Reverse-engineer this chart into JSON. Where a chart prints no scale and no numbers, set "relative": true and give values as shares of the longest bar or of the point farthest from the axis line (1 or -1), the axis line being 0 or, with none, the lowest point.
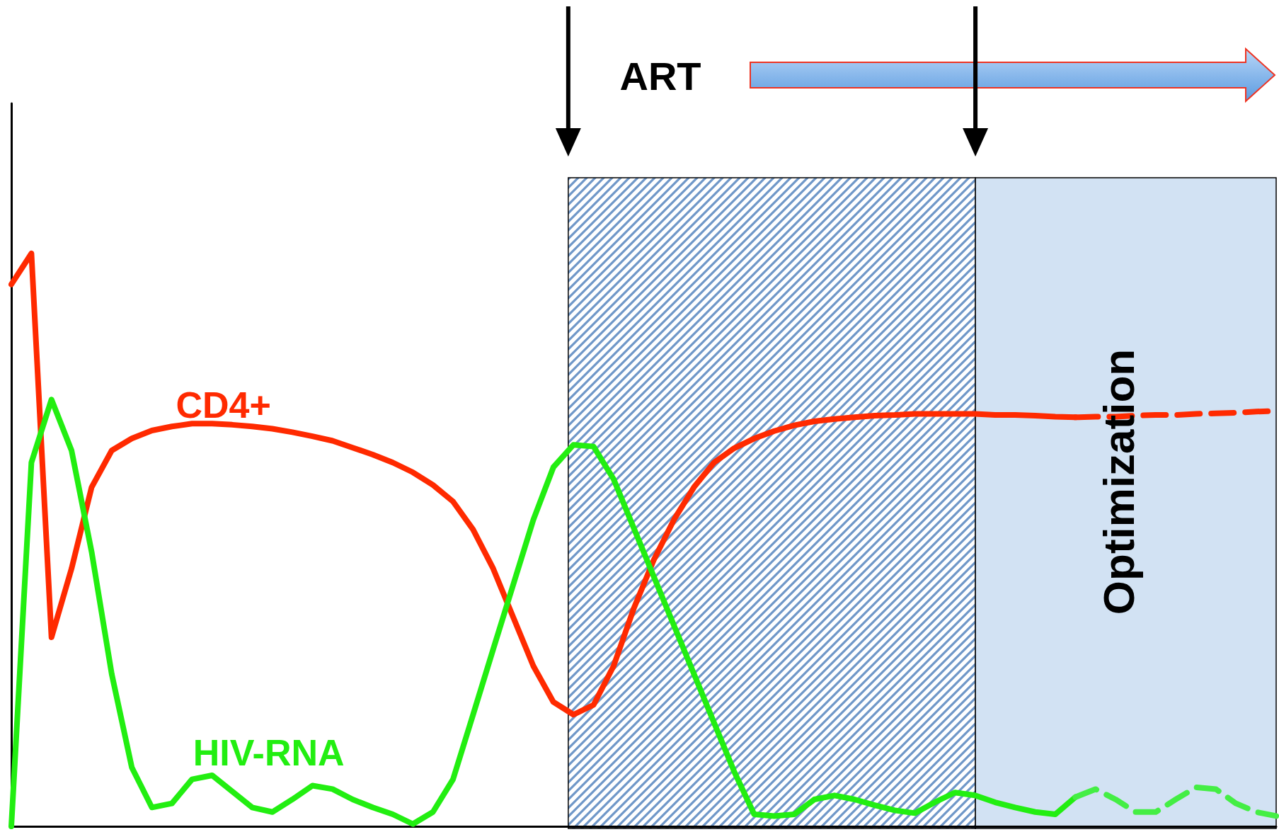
{
  "chart_data": {
    "type": "line",
    "relative": true,
    "grid": false,
    "legend": false,
    "marker": "none",
    "annotations": [
      "ART",
      "Optimization"
    ],
    "categories": [
      null,
      null,
      null,
      null,
      null,
      null,
      null,
      null,
      null,
      null,
      null,
      null,
      null,
      null,
      null,
      null,
      null,
      null,
      null,
      null,
      null,
      null,
      null,
      null,
      null,
      null,
      null,
      null,
      null,
      null,
      null,
      null,
      null,
      null,
      null,
      null,
      null,
      null,
      null,
      null,
      null,
      null,
      null,
      null,
      null,
      null,
      null,
      null,
      null,
      null,
      null,
      null,
      null,
      null,
      null,
      null,
      null,
      null,
      null,
      null,
      null,
      null,
      null,
      null
    ],
    "series": [
      {
        "name": "CD4+",
        "color": "#ff2a00",
        "line_style": "solid",
        "values": [
          0.946,
          1,
          0.33,
          0.45,
          0.592,
          0.656,
          0.677,
          0.691,
          0.698,
          0.703,
          0.703,
          0.701,
          0.698,
          0.694,
          0.688,
          0.681,
          0.673,
          0.661,
          0.649,
          0.635,
          0.618,
          0.596,
          0.567,
          0.518,
          0.45,
          0.365,
          0.28,
          0.217,
          0.195,
          0.212,
          0.28,
          0.38,
          0.465,
          0.535,
          0.592,
          0.635,
          0.66,
          0.677,
          0.69,
          0.7,
          0.707,
          0.711,
          0.714,
          0.717,
          0.718,
          0.72,
          0.72,
          0.72,
          0.72,
          0.718,
          0.718,
          0.717,
          0.715,
          0.714,
          null,
          null,
          null,
          null,
          null,
          null,
          null,
          null,
          null,
          null
        ]
      },
      {
        "name": "HIV-RNA",
        "color": "#22ee11",
        "line_style": "solid",
        "values": [
          0,
          0.635,
          0.745,
          0.656,
          0.479,
          0.266,
          0.103,
          0.033,
          0.04,
          0.082,
          0.089,
          0.061,
          0.033,
          0.025,
          0.047,
          0.071,
          0.065,
          0.047,
          0.033,
          0.021,
          0.004,
          0.025,
          0.082,
          0.195,
          0.309,
          0.422,
          0.535,
          0.627,
          0.666,
          0.663,
          0.606,
          0.521,
          0.436,
          0.351,
          0.266,
          0.181,
          0.096,
          0.021,
          0.018,
          0.021,
          0.047,
          0.054,
          0.047,
          0.037,
          0.028,
          0.023,
          0.042,
          0.059,
          0.054,
          0.042,
          0.033,
          0.025,
          0.021,
          0.051,
          null,
          null,
          null,
          null,
          null,
          null,
          null,
          null,
          null,
          null
        ]
      },
      {
        "color": "#ff2a00",
        "line_style": "dashed",
        "values": [
          null,
          null,
          null,
          null,
          null,
          null,
          null,
          null,
          null,
          null,
          null,
          null,
          null,
          null,
          null,
          null,
          null,
          null,
          null,
          null,
          null,
          null,
          null,
          null,
          null,
          null,
          null,
          null,
          null,
          null,
          null,
          null,
          null,
          null,
          null,
          null,
          null,
          null,
          null,
          null,
          null,
          null,
          null,
          null,
          null,
          null,
          null,
          null,
          null,
          null,
          null,
          null,
          null,
          0.714,
          0.715,
          0.715,
          0.717,
          0.718,
          0.718,
          0.72,
          0.721,
          0.722,
          0.724,
          0.725
        ]
      },
      {
        "color": "#44ee44",
        "line_style": "dashed",
        "values": [
          null,
          null,
          null,
          null,
          null,
          null,
          null,
          null,
          null,
          null,
          null,
          null,
          null,
          null,
          null,
          null,
          null,
          null,
          null,
          null,
          null,
          null,
          null,
          null,
          null,
          null,
          null,
          null,
          null,
          null,
          null,
          null,
          null,
          null,
          null,
          null,
          null,
          null,
          null,
          null,
          null,
          null,
          null,
          null,
          null,
          null,
          null,
          null,
          null,
          null,
          null,
          null,
          null,
          0.051,
          0.065,
          0.047,
          0.025,
          0.025,
          0.047,
          0.068,
          0.065,
          0.04,
          0.025,
          0.018
        ]
      }
    ]
  }
}
